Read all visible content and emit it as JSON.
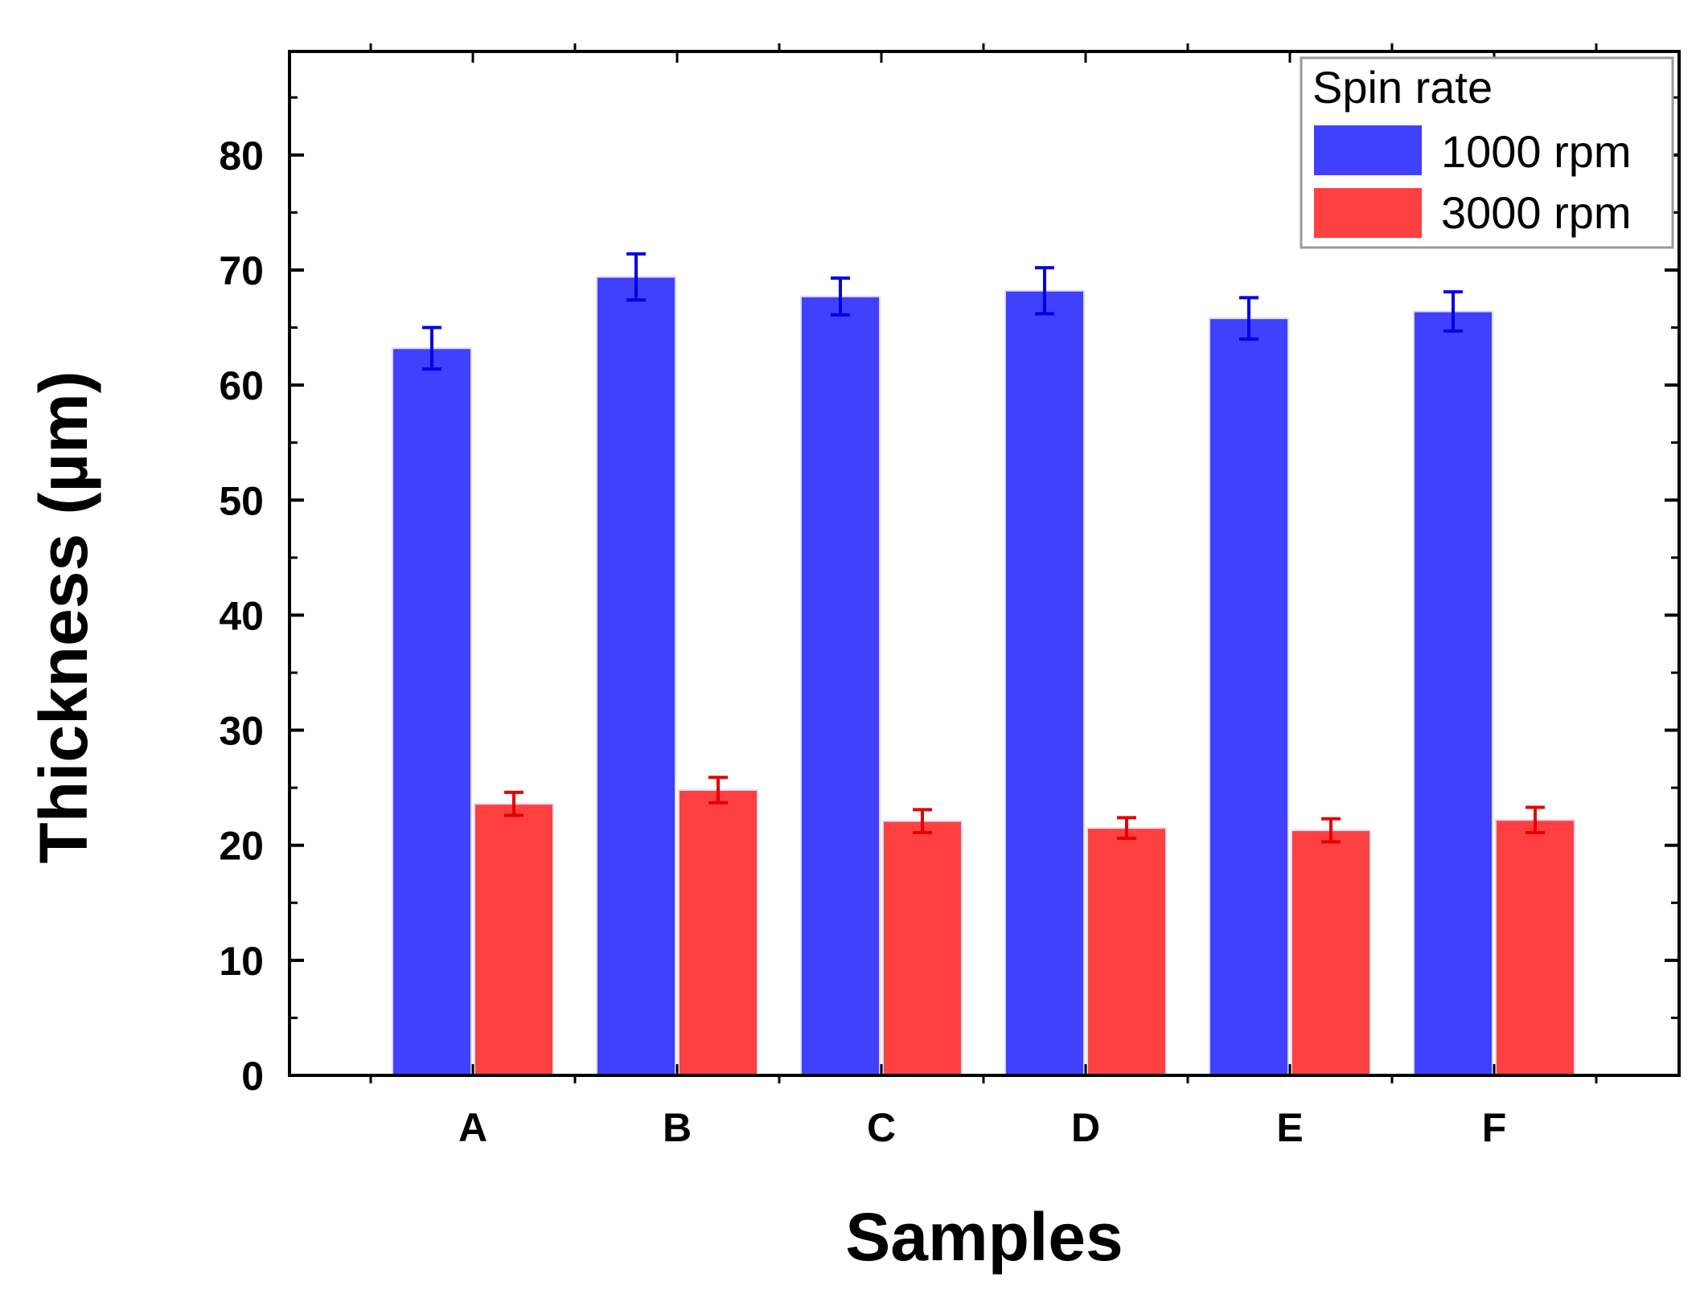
{
  "chart_data": {
    "type": "bar",
    "title": "",
    "xlabel": "Samples",
    "ylabel": "Thickness (µm)",
    "ylim": [
      0,
      89
    ],
    "yticks": [
      0,
      10,
      20,
      30,
      40,
      50,
      60,
      70,
      80
    ],
    "categories": [
      "A",
      "B",
      "C",
      "D",
      "E",
      "F"
    ],
    "legend": {
      "title": "Spin rate",
      "position": "top-right"
    },
    "series": [
      {
        "name": "1000 rpm",
        "color": "#4040ff",
        "error_color": "#0000e6",
        "values": [
          63.2,
          69.4,
          67.7,
          68.2,
          65.8,
          66.4
        ],
        "errors": [
          1.8,
          2.0,
          1.6,
          2.0,
          1.8,
          1.7
        ]
      },
      {
        "name": "3000 rpm",
        "color": "#ff4040",
        "error_color": "#e60000",
        "values": [
          23.6,
          24.8,
          22.1,
          21.5,
          21.3,
          22.2
        ],
        "errors": [
          1.0,
          1.1,
          1.0,
          0.9,
          1.0,
          1.1
        ]
      }
    ]
  }
}
